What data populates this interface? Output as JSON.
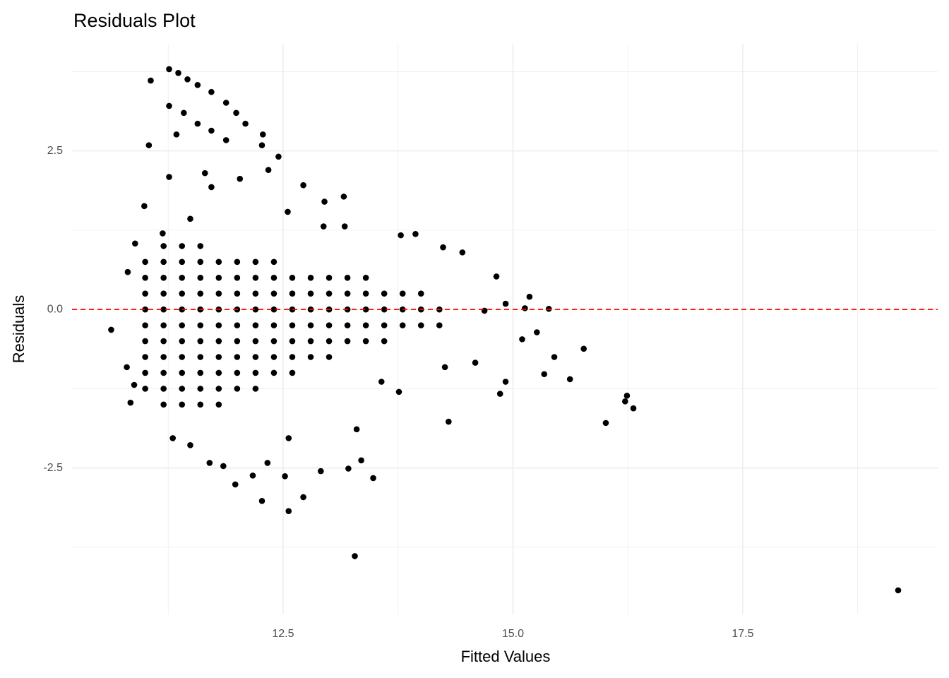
{
  "chart_data": {
    "type": "scatter",
    "title": "Residuals Plot",
    "xlabel": "Fitted Values",
    "ylabel": "Residuals",
    "color": "#000000",
    "x": [
      11.0,
      11.0,
      11.0,
      11.0,
      11.0,
      11.0,
      11.0,
      11.0,
      11.0,
      11.2,
      11.2,
      11.2,
      11.2,
      11.2,
      11.2,
      11.2,
      11.2,
      11.2,
      11.2,
      11.2,
      11.4,
      11.4,
      11.4,
      11.4,
      11.4,
      11.4,
      11.4,
      11.4,
      11.4,
      11.4,
      11.4,
      11.6,
      11.6,
      11.6,
      11.6,
      11.6,
      11.6,
      11.6,
      11.6,
      11.6,
      11.6,
      11.6,
      11.8,
      11.8,
      11.8,
      11.8,
      11.8,
      11.8,
      11.8,
      11.8,
      11.8,
      11.8,
      12.0,
      12.0,
      12.0,
      12.0,
      12.0,
      12.0,
      12.0,
      12.0,
      12.0,
      12.2,
      12.2,
      12.2,
      12.2,
      12.2,
      12.2,
      12.2,
      12.2,
      12.2,
      12.4,
      12.4,
      12.4,
      12.4,
      12.4,
      12.4,
      12.4,
      12.4,
      12.6,
      12.6,
      12.6,
      12.6,
      12.6,
      12.6,
      12.6,
      12.8,
      12.8,
      12.8,
      12.8,
      12.8,
      12.8,
      13.0,
      13.0,
      13.0,
      13.0,
      13.0,
      13.0,
      13.2,
      13.2,
      13.2,
      13.2,
      13.2,
      13.4,
      13.4,
      13.4,
      13.4,
      13.4,
      13.6,
      13.6,
      13.6,
      13.6,
      13.8,
      13.8,
      13.8,
      14.0,
      14.0,
      14.0,
      14.2,
      14.2,
      10.63,
      11.26,
      11.06,
      11.36,
      11.46,
      11.57,
      11.72,
      11.88,
      11.99,
      12.09,
      11.26,
      11.42,
      11.57,
      11.72,
      11.88,
      12.28,
      11.04,
      12.27,
      12.45,
      11.34,
      11.65,
      11.72,
      12.72,
      13.16,
      12.95,
      10.99,
      11.26,
      12.34,
      12.03,
      12.55,
      12.94,
      13.17,
      13.78,
      13.94,
      14.24,
      14.45,
      14.82,
      15.18,
      15.39,
      15.13,
      14.92,
      14.69,
      15.77,
      15.62,
      15.34,
      15.45,
      15.1,
      15.26,
      14.92,
      14.86,
      14.59,
      14.26,
      14.3,
      16.01,
      16.24,
      16.22,
      16.31,
      19.19,
      13.28,
      12.56,
      12.72,
      12.27,
      12.52,
      13.48,
      13.21,
      13.35,
      13.3,
      12.91,
      11.98,
      12.17,
      11.7,
      11.49,
      11.3,
      11.85,
      12.33,
      12.56,
      13.57,
      13.76,
      10.84,
      10.88,
      10.8,
      10.81,
      10.89,
      11.19,
      11.49
    ],
    "values": [
      -1.25,
      -1,
      -0.75,
      -0.5,
      -0.25,
      0,
      0.25,
      0.5,
      0.75,
      -1.5,
      -1.25,
      -1,
      -0.75,
      -0.5,
      -0.25,
      0,
      0.25,
      0.5,
      0.75,
      1,
      -1.5,
      -1.25,
      -1,
      -0.75,
      -0.5,
      -0.25,
      0,
      0.25,
      0.5,
      0.75,
      1,
      -1.5,
      -1.25,
      -1,
      -0.75,
      -0.5,
      -0.25,
      0,
      0.25,
      0.5,
      0.75,
      1,
      -1.5,
      -1.25,
      -1,
      -0.75,
      -0.5,
      -0.25,
      0,
      0.25,
      0.5,
      0.75,
      -1.25,
      -1,
      -0.75,
      -0.5,
      -0.25,
      0,
      0.25,
      0.5,
      0.75,
      -1.25,
      -1,
      -0.75,
      -0.5,
      -0.25,
      0,
      0.25,
      0.5,
      0.75,
      -1,
      -0.75,
      -0.5,
      -0.25,
      0,
      0.25,
      0.5,
      0.75,
      -1,
      -0.75,
      -0.5,
      -0.25,
      0,
      0.25,
      0.5,
      -0.75,
      -0.5,
      -0.25,
      0,
      0.25,
      0.5,
      -0.75,
      -0.5,
      -0.25,
      0,
      0.25,
      0.5,
      -0.5,
      -0.25,
      0,
      0.25,
      0.5,
      -0.5,
      -0.25,
      0,
      0.25,
      0.5,
      -0.5,
      -0.25,
      0,
      0.25,
      -0.25,
      0,
      0.25,
      -0.25,
      0,
      0.25,
      -0.25,
      0,
      -0.32,
      3.79,
      3.61,
      3.73,
      3.63,
      3.54,
      3.43,
      3.26,
      3.1,
      2.93,
      3.21,
      3.1,
      2.93,
      2.82,
      2.67,
      2.76,
      2.59,
      2.59,
      2.41,
      2.76,
      2.15,
      1.93,
      1.96,
      1.78,
      1.7,
      1.63,
      2.09,
      2.2,
      2.06,
      1.54,
      1.31,
      1.31,
      1.17,
      1.19,
      0.98,
      0.9,
      0.52,
      0.2,
      0.01,
      0.02,
      0.09,
      -0.02,
      -0.62,
      -1.1,
      -1.02,
      -0.75,
      -0.47,
      -0.36,
      -1.14,
      -1.33,
      -0.84,
      -0.91,
      -1.77,
      -1.79,
      -1.36,
      -1.45,
      -1.56,
      -4.43,
      -3.89,
      -3.18,
      -2.96,
      -3.02,
      -2.63,
      -2.66,
      -2.51,
      -2.38,
      -1.89,
      -2.55,
      -2.76,
      -2.62,
      -2.42,
      -2.14,
      -2.03,
      -2.47,
      -2.42,
      -2.03,
      -1.14,
      -1.3,
      -1.47,
      -1.19,
      -0.91,
      0.59,
      1.04,
      1.2,
      1.43
    ],
    "xlim": [
      10.204,
      19.62
    ],
    "ylim": [
      -4.81,
      4.19
    ],
    "xticks": [
      12.5,
      {
        "value": 15,
        "label": "15.0"
      },
      17.5
    ],
    "yticks": [
      -2.5,
      {
        "value": 0,
        "label": "0.0"
      },
      2.5
    ],
    "grid": true,
    "reference_line": {
      "value": 0,
      "color": "#ff0000",
      "style": "dashed"
    }
  }
}
